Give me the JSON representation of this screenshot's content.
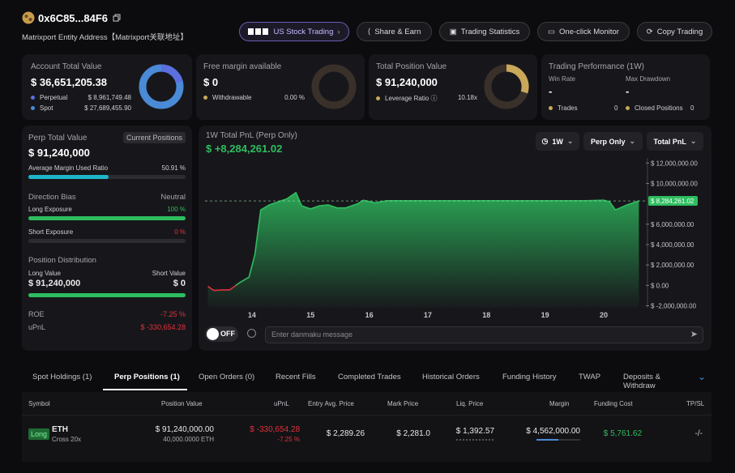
{
  "header": {
    "address": "0x6C85...84F6",
    "entity": "Matrixport Entity Address【Matrixport关联地址】",
    "buttons": [
      "US Stock Trading",
      "Share & Earn",
      "Trading Statistics",
      "One-click Monitor",
      "Copy Trading"
    ]
  },
  "cards": {
    "account": {
      "title": "Account Total Value",
      "value": "$ 36,651,205.38",
      "rows": [
        [
          "Perpetual",
          "$ 8,961,749.48"
        ],
        [
          "Spot",
          "$ 27,689,455.90"
        ]
      ]
    },
    "margin": {
      "title": "Free margin available",
      "value": "$ 0",
      "rows": [
        [
          "Withdrawable",
          "0.00 %"
        ]
      ]
    },
    "position": {
      "title": "Total Position Value",
      "value": "$ 91,240,000",
      "rows": [
        [
          "Leverage Ratio",
          "10.18x"
        ]
      ]
    },
    "performance": {
      "title": "Trading Performance (1W)",
      "stats": [
        [
          "Win Rate",
          "-"
        ],
        [
          "Max Drawdown",
          "-"
        ]
      ],
      "rows": [
        [
          "Trades",
          "0"
        ],
        [
          "Closed Positions",
          "0"
        ]
      ]
    }
  },
  "perp": {
    "title": "Perp Total Value",
    "badge": "Current Positions",
    "value": "$ 91,240,000",
    "margin_label": "Average Margin Used Ratio",
    "margin_value": "50.91 %",
    "bias_label": "Direction Bias",
    "bias_value": "Neutral",
    "long_label": "Long Exposure",
    "long_value": "100 %",
    "short_label": "Short Exposure",
    "short_value": "0 %",
    "dist_label": "Position Distribution",
    "long_value_label": "Long Value",
    "short_value_label": "Short Value",
    "long_amount": "$ 91,240,000",
    "short_amount": "$ 0",
    "roe_label": "ROE",
    "roe": "-7.25 %",
    "upnl_label": "uPnL",
    "upnl": "$ -330,654.28"
  },
  "chart_data": {
    "type": "area",
    "title": "1W Total PnL (Perp Only)",
    "subtitle": "$ +8,284,261.02",
    "controls": [
      "1W",
      "Perp Only",
      "Total PnL"
    ],
    "last_value_label": "$ 8,284,261.02",
    "color": "#2ebd5f",
    "negative_color": "#e0313b",
    "x": [
      13.25,
      13.35,
      13.5,
      13.62,
      13.8,
      13.95,
      14.05,
      14.15,
      14.3,
      14.45,
      14.6,
      14.75,
      14.85,
      15.0,
      15.15,
      15.3,
      15.45,
      15.6,
      15.8,
      15.9,
      16.1,
      16.3,
      17,
      18,
      19,
      19.7,
      20.0,
      20.1,
      20.2,
      20.4,
      20.6
    ],
    "values": [
      -100000,
      -500000,
      -450000,
      -450000,
      300000,
      800000,
      3000000,
      7400000,
      7900000,
      8200000,
      8500000,
      9100000,
      7800000,
      7500000,
      7800000,
      7900000,
      7600000,
      7600000,
      8000000,
      8350000,
      8100000,
      8300000,
      8300000,
      8300000,
      8300000,
      8300000,
      8350000,
      8200000,
      7400000,
      7900000,
      8284261.02
    ],
    "xlim": [
      13.2,
      20.65
    ],
    "xticks": [
      14,
      15,
      16,
      17,
      18,
      19,
      20
    ],
    "ylim": [
      -2200000,
      12500000
    ],
    "yticks": [
      {
        "value": -2000000,
        "label": "$ -2,000,000.00"
      },
      {
        "value": 0,
        "label": "$ 0.00"
      },
      {
        "value": 2000000,
        "label": "$ 2,000,000.00"
      },
      {
        "value": 4000000,
        "label": "$ 4,000,000.00"
      },
      {
        "value": 6000000,
        "label": "$ 6,000,000.00"
      },
      {
        "value": 10000000,
        "label": "$ 10,000,000.00"
      },
      {
        "value": 12000000,
        "label": "$ 12,000,000.00"
      }
    ]
  },
  "danmaku": {
    "toggle": "OFF",
    "placeholder": "Enter danmaku message"
  },
  "tabs": [
    "Spot Holdings (1)",
    "Perp Positions (1)",
    "Open Orders (0)",
    "Recent Fills",
    "Completed Trades",
    "Historical Orders",
    "Funding History",
    "TWAP",
    "Deposits & Withdraw"
  ],
  "table": {
    "headers": [
      "Symbol",
      "Position Value",
      "uPnL",
      "Entry Avg. Price",
      "Mark Price",
      "Liq. Price",
      "Margin",
      "Funding Cost",
      "TP/SL"
    ],
    "rows": [
      {
        "side": "Long",
        "symbol": "ETH",
        "mode": "Cross 20x",
        "value": "$ 91,240,000.00",
        "size": "40,000.0000 ETH",
        "upnl": "$ -330,654.28",
        "upnl_pct": "-7.25 %",
        "entry": "$ 2,289.26",
        "mark": "$ 2,281.0",
        "liq": "$ 1,392.57",
        "margin": "$ 4,562,000.00",
        "funding": "$ 5,761.62",
        "tpsl": "-/-"
      }
    ]
  }
}
